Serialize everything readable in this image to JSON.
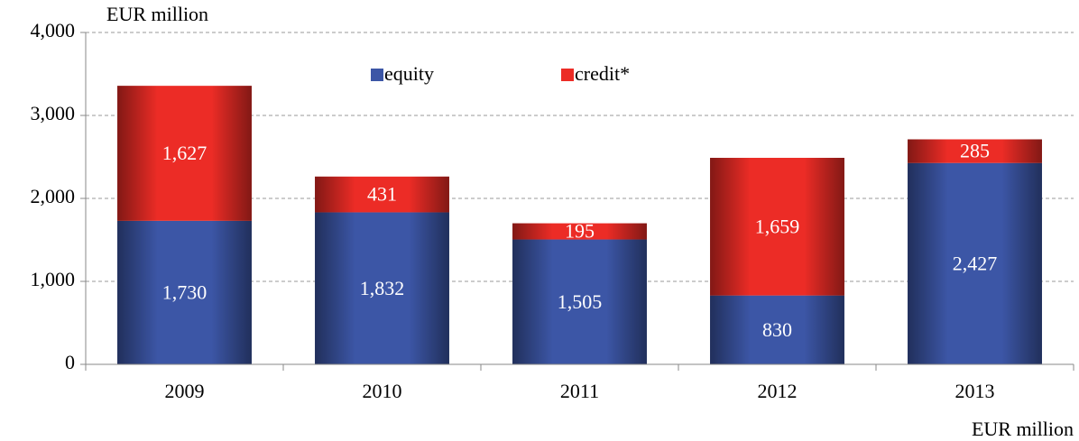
{
  "chart_data": {
    "type": "stacked_bar",
    "y_label": "EUR million",
    "x_label": "EUR million",
    "categories": [
      "2009",
      "2010",
      "2011",
      "2012",
      "2013"
    ],
    "series": [
      {
        "name": "equity",
        "color": "#3c56a6",
        "values": [
          1730,
          1832,
          1505,
          830,
          2427
        ],
        "value_labels": [
          "1,730",
          "1,832",
          "1,505",
          "830",
          "2,427"
        ]
      },
      {
        "name": "credit*",
        "color": "#ec2c26",
        "values": [
          1627,
          431,
          195,
          1659,
          285
        ],
        "value_labels": [
          "1,627",
          "431",
          "195",
          "1,659",
          "285"
        ]
      }
    ],
    "ylim": [
      0,
      4000
    ],
    "yticks": [
      0,
      {
        "value": 1000,
        "label": "1,000"
      },
      {
        "value": 2000,
        "label": "2,000"
      },
      {
        "value": 3000,
        "label": "3,000"
      },
      {
        "value": 4000,
        "label": "4,000"
      }
    ],
    "grid": true,
    "legend": "top"
  }
}
